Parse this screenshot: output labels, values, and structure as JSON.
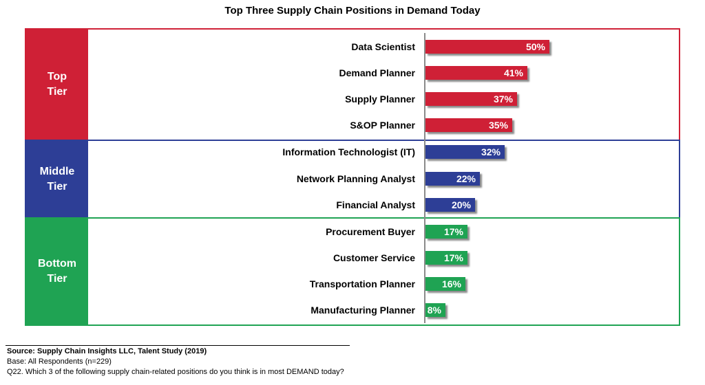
{
  "chart_data": {
    "type": "bar",
    "orientation": "horizontal",
    "title": "Top Three Supply Chain Positions in Demand Today",
    "groups": [
      {
        "label_line1": "Top",
        "label_line2": "Tier",
        "color": "#cf2036",
        "categories": [
          "Data Scientist",
          "Demand Planner",
          "Supply Planner",
          "S&OP Planner"
        ],
        "values": [
          50,
          41,
          37,
          35
        ],
        "value_labels": [
          "50%",
          "41%",
          "37%",
          "35%"
        ]
      },
      {
        "label_line1": "Middle",
        "label_line2": "Tier",
        "color": "#2d3e96",
        "categories": [
          "Information Technologist (IT)",
          "Network Planning Analyst",
          "Financial Analyst"
        ],
        "values": [
          32,
          22,
          20
        ],
        "value_labels": [
          "32%",
          "22%",
          "20%"
        ]
      },
      {
        "label_line1": "Bottom",
        "label_line2": "Tier",
        "color": "#1fa353",
        "categories": [
          "Procurement Buyer",
          "Customer Service",
          "Transportation Planner",
          "Manufacturing Planner"
        ],
        "values": [
          17,
          17,
          16,
          8
        ],
        "value_labels": [
          "17%",
          "17%",
          "16%",
          "8%"
        ]
      }
    ],
    "xlim": [
      0,
      100
    ],
    "grid": false
  },
  "footer": {
    "source": "Source:  Supply Chain Insights LLC, Talent Study (2019)",
    "base": "Base: All Respondents (n=229)",
    "question": "Q22. Which 3 of the following supply chain-related positions do you think is in most DEMAND today?"
  }
}
